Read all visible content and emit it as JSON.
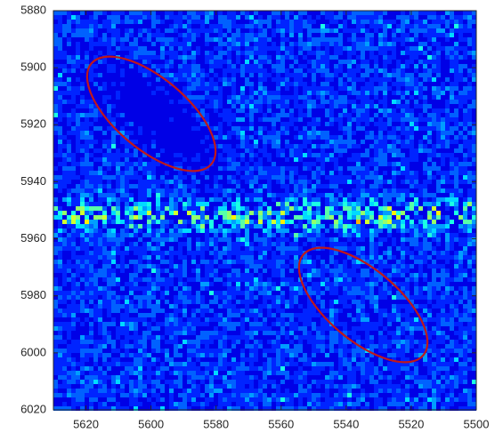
{
  "chart_data": {
    "type": "heatmap",
    "xlim": [
      5630,
      5500
    ],
    "xticks": [
      5620,
      5600,
      5580,
      5560,
      5540,
      5520,
      5500
    ],
    "ylim": [
      5880,
      6020
    ],
    "yticks": [
      5880,
      5900,
      5920,
      5940,
      5960,
      5980,
      6000,
      6020
    ]
  }
}
